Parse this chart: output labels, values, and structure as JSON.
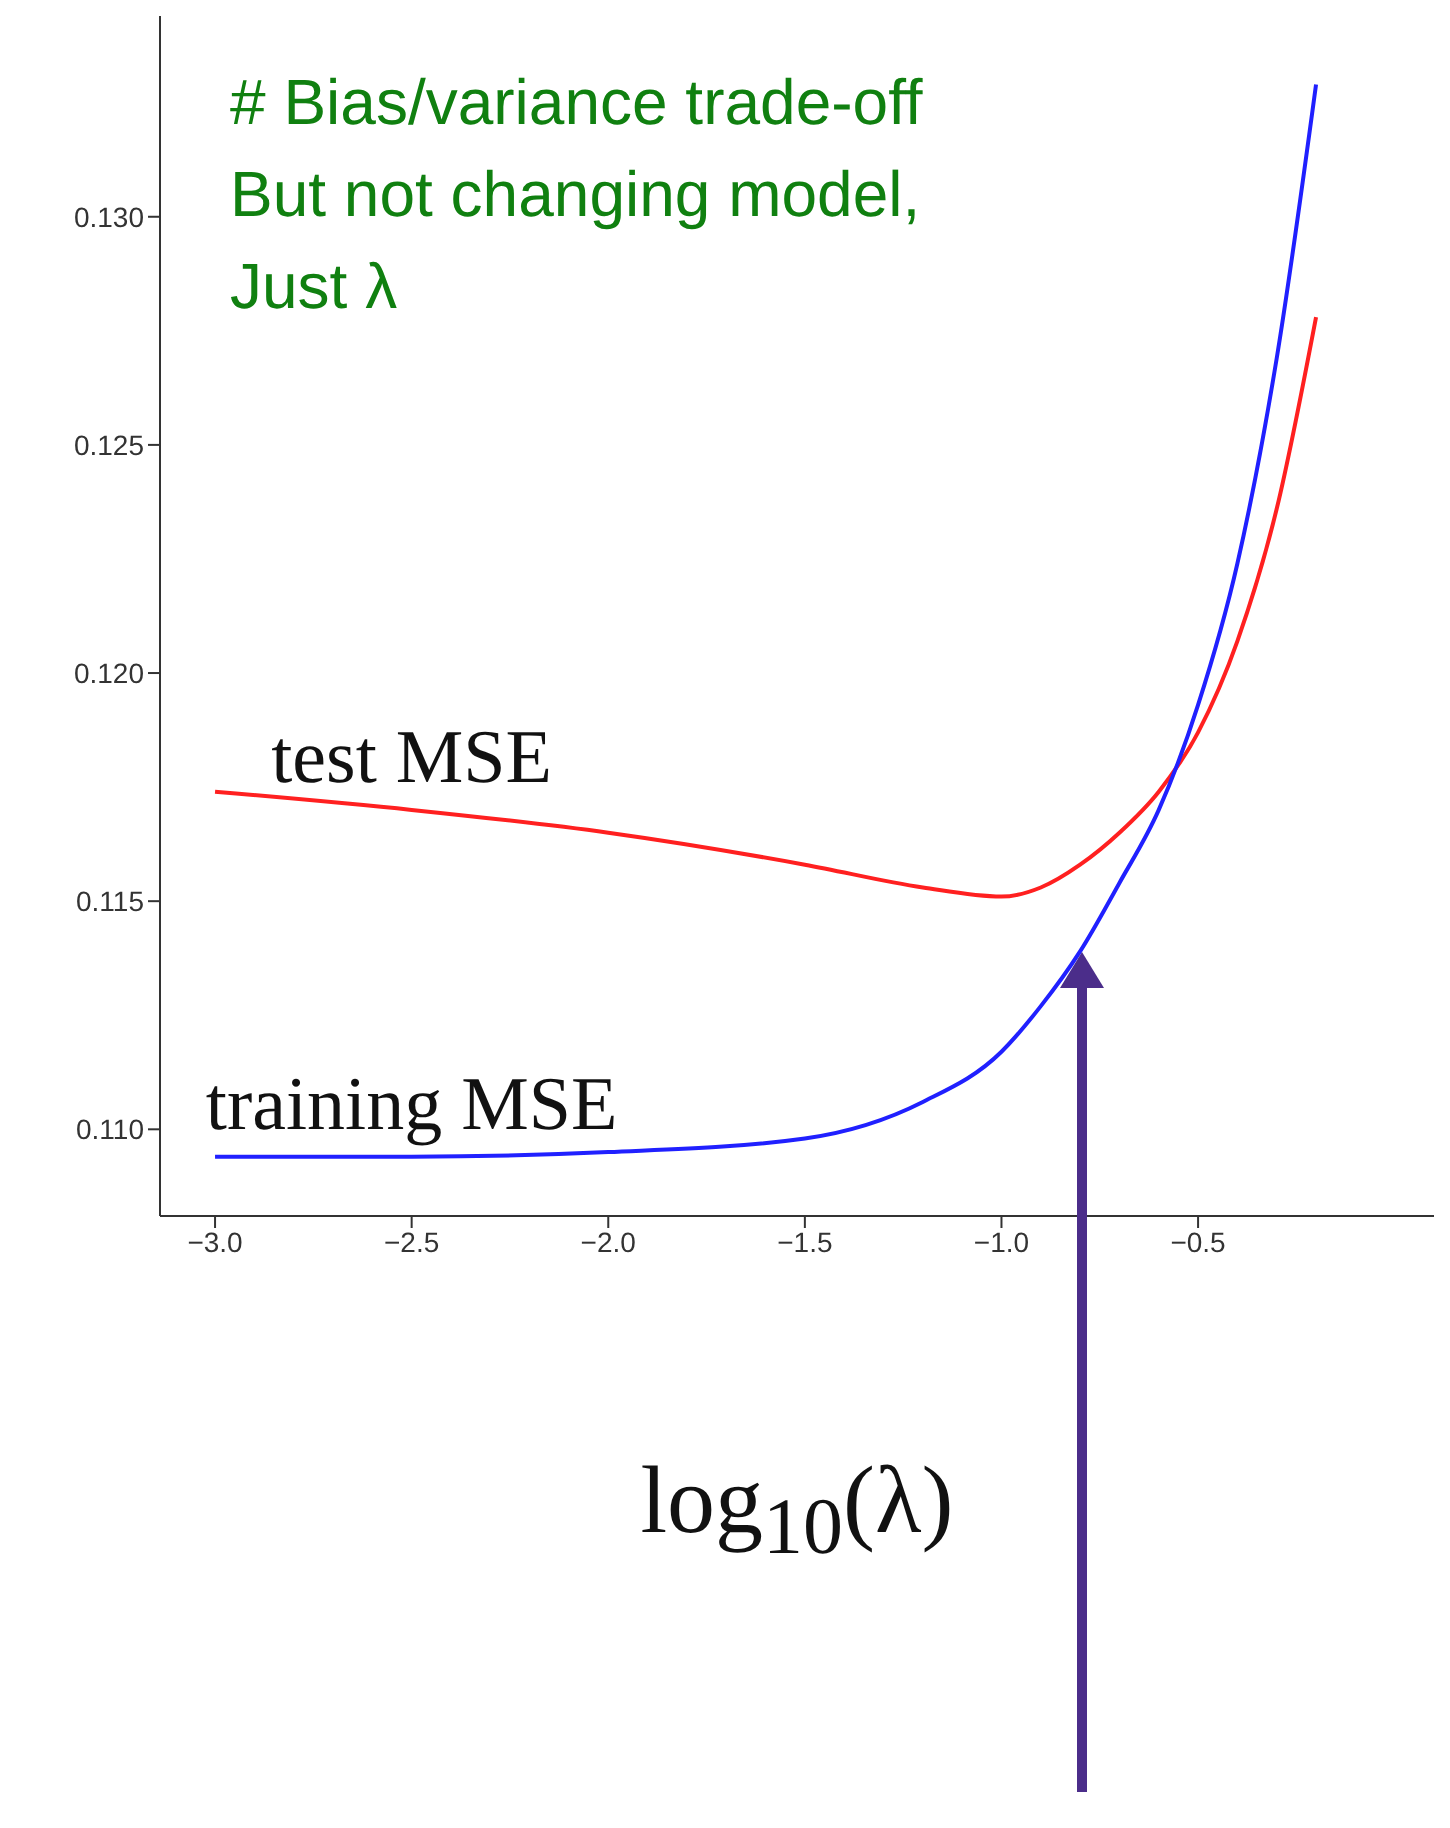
{
  "chart_data": {
    "type": "line",
    "xlabel": "log$_{10}$(λ)",
    "x": [
      -3.0,
      -2.5,
      -2.0,
      -1.5,
      -1.2,
      -1.0,
      -0.9,
      -0.8,
      -0.7,
      -0.6,
      -0.5,
      -0.4,
      -0.3,
      -0.2
    ],
    "series": [
      {
        "name": "test MSE",
        "color": "#ff2020",
        "values": [
          0.1174,
          0.117,
          0.1165,
          0.1158,
          0.1153,
          0.1151,
          0.1153,
          0.1158,
          0.1165,
          0.1174,
          0.1187,
          0.1207,
          0.1236,
          0.1278
        ]
      },
      {
        "name": "training MSE",
        "color": "#2020ff",
        "values": [
          0.1094,
          0.1094,
          0.1095,
          0.1098,
          0.1106,
          0.1117,
          0.1127,
          0.1139,
          0.1154,
          0.117,
          0.1193,
          0.1224,
          0.1269,
          0.1329
        ]
      }
    ],
    "xlim": [
      -3.14,
      0.1
    ],
    "ylim": [
      0.1081,
      0.1344
    ],
    "xticks": [
      {
        "value": -3.0,
        "label": "−3.0"
      },
      {
        "value": -2.5,
        "label": "−2.5"
      },
      {
        "value": -2.0,
        "label": "−2.0"
      },
      {
        "value": -1.5,
        "label": "−1.5"
      },
      {
        "value": -1.0,
        "label": "−1.0"
      },
      {
        "value": -0.5,
        "label": "−0.5"
      }
    ],
    "yticks": [
      {
        "value": 0.11,
        "label": "0.110"
      },
      {
        "value": 0.115,
        "label": "0.115"
      },
      {
        "value": 0.12,
        "label": "0.120"
      },
      {
        "value": 0.125,
        "label": "0.125"
      },
      {
        "value": 0.13,
        "label": "0.130"
      }
    ],
    "grid": false,
    "marker": "none",
    "line_style": "solid",
    "annotations": [
      "# Bias/variance trade-off",
      "But not changing model,",
      "Just λ"
    ]
  }
}
